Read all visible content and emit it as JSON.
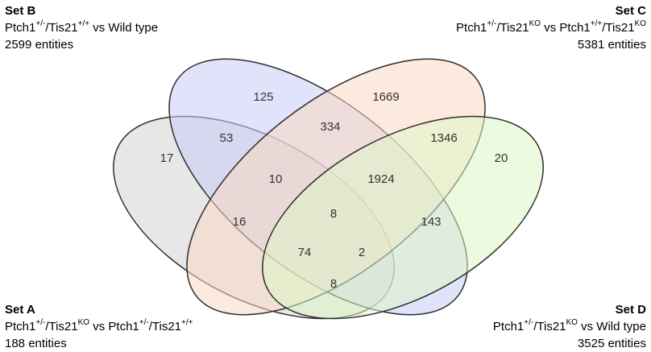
{
  "sets": {
    "A": {
      "title": "Set A",
      "name_parts": [
        {
          "t": "Ptch1"
        },
        {
          "t": "+/-",
          "sup": true
        },
        {
          "t": "/Tis21"
        },
        {
          "t": "KO",
          "sup": true
        },
        {
          "t": " vs Ptch1"
        },
        {
          "t": "+/-",
          "sup": true
        },
        {
          "t": "/Tis21"
        },
        {
          "t": "+/+",
          "sup": true
        }
      ],
      "entities": "188 entities",
      "color": "#d4d4d4"
    },
    "B": {
      "title": "Set B",
      "name_parts": [
        {
          "t": "Ptch1"
        },
        {
          "t": "+/-",
          "sup": true
        },
        {
          "t": "/Tis21"
        },
        {
          "t": "+/+",
          "sup": true
        },
        {
          "t": " vs Wild type"
        }
      ],
      "entities": "2599 entities",
      "color": "#c9ccf7"
    },
    "C": {
      "title": "Set C",
      "name_parts": [
        {
          "t": "Ptch1"
        },
        {
          "t": "+/-",
          "sup": true
        },
        {
          "t": "/Tis21"
        },
        {
          "t": "KO",
          "sup": true
        },
        {
          "t": " vs Ptch1"
        },
        {
          "t": "+/+",
          "sup": true
        },
        {
          "t": "/Tis21"
        },
        {
          "t": "KO",
          "sup": true
        }
      ],
      "entities": "5381 entities",
      "color": "#fbd8c2"
    },
    "D": {
      "title": "Set D",
      "name_parts": [
        {
          "t": "Ptch1"
        },
        {
          "t": "+/-",
          "sup": true
        },
        {
          "t": "/Tis21"
        },
        {
          "t": "KO",
          "sup": true
        },
        {
          "t": " vs Wild type"
        }
      ],
      "entities": "3525 entities",
      "color": "#dcf5c6"
    }
  },
  "regions": {
    "A_only": "17",
    "B_only": "125",
    "C_only": "1669",
    "D_only": "20",
    "AB": "53",
    "BC": "334",
    "CD": "1346",
    "ABC": "10",
    "BCD": "1924",
    "AC": "16",
    "BD": "143",
    "ABCD": "8",
    "ACD": "74",
    "ABD": "2",
    "AD": "8"
  }
}
